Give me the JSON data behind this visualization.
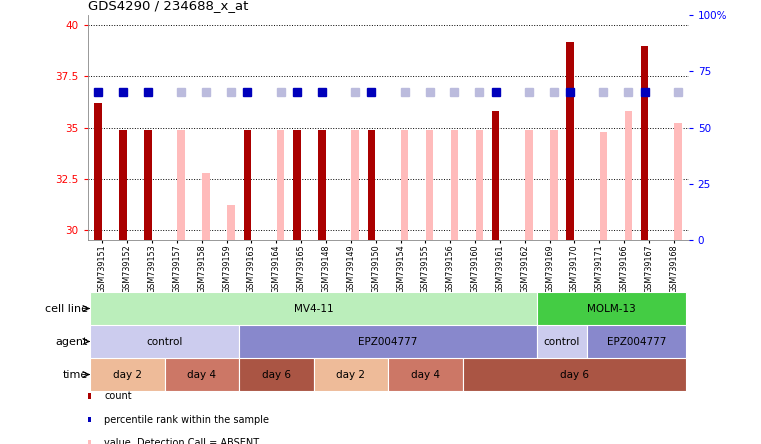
{
  "title": "GDS4290 / 234688_x_at",
  "samples": [
    "GSM739151",
    "GSM739152",
    "GSM739153",
    "GSM739157",
    "GSM739158",
    "GSM739159",
    "GSM739163",
    "GSM739164",
    "GSM739165",
    "GSM739148",
    "GSM739149",
    "GSM739150",
    "GSM739154",
    "GSM739155",
    "GSM739156",
    "GSM739160",
    "GSM739161",
    "GSM739162",
    "GSM739169",
    "GSM739170",
    "GSM739171",
    "GSM739166",
    "GSM739167",
    "GSM739168"
  ],
  "count_values": [
    36.2,
    34.9,
    34.9,
    null,
    null,
    null,
    34.9,
    null,
    34.9,
    34.9,
    null,
    34.9,
    null,
    null,
    null,
    null,
    35.8,
    null,
    null,
    39.2,
    null,
    null,
    39.0,
    null
  ],
  "value_values": [
    null,
    null,
    null,
    34.9,
    32.8,
    31.2,
    null,
    34.9,
    null,
    null,
    34.9,
    null,
    34.9,
    34.9,
    34.9,
    34.9,
    null,
    34.9,
    34.9,
    null,
    34.8,
    35.8,
    null,
    35.2
  ],
  "rank_present": [
    66,
    66,
    66,
    null,
    null,
    null,
    66,
    null,
    66,
    66,
    null,
    66,
    null,
    null,
    null,
    null,
    66,
    null,
    null,
    66,
    null,
    null,
    66,
    null
  ],
  "rank_absent": [
    null,
    null,
    null,
    66,
    66,
    66,
    null,
    66,
    null,
    null,
    66,
    null,
    66,
    66,
    66,
    66,
    null,
    66,
    66,
    null,
    66,
    66,
    null,
    66
  ],
  "ylim_left": [
    29.5,
    40.5
  ],
  "ylim_right": [
    0,
    100
  ],
  "yticks_left": [
    30,
    32.5,
    35,
    37.5,
    40
  ],
  "yticks_right": [
    0,
    25,
    50,
    75,
    100
  ],
  "yticklabels_right": [
    "0",
    "25",
    "50",
    "75",
    "100%"
  ],
  "count_color": "#aa0000",
  "value_color": "#ffbbbb",
  "rank_color": "#0000bb",
  "rank_absent_color": "#bbbbdd",
  "bg_color": "#ffffff",
  "cell_lines": [
    {
      "label": "MV4-11",
      "start": 0,
      "end": 18,
      "color": "#bbeebb"
    },
    {
      "label": "MOLM-13",
      "start": 18,
      "end": 24,
      "color": "#44cc44"
    }
  ],
  "agent_segments": [
    {
      "label": "control",
      "start": 0,
      "end": 6,
      "color": "#ccccee"
    },
    {
      "label": "EPZ004777",
      "start": 6,
      "end": 18,
      "color": "#8888cc"
    },
    {
      "label": "control",
      "start": 18,
      "end": 20,
      "color": "#ccccee"
    },
    {
      "label": "EPZ004777",
      "start": 20,
      "end": 24,
      "color": "#8888cc"
    }
  ],
  "time_segments": [
    {
      "label": "day 2",
      "start": 0,
      "end": 3,
      "color": "#eebb99"
    },
    {
      "label": "day 4",
      "start": 3,
      "end": 6,
      "color": "#cc7766"
    },
    {
      "label": "day 6",
      "start": 6,
      "end": 9,
      "color": "#aa5544"
    },
    {
      "label": "day 2",
      "start": 9,
      "end": 12,
      "color": "#eebb99"
    },
    {
      "label": "day 4",
      "start": 12,
      "end": 15,
      "color": "#cc7766"
    },
    {
      "label": "day 6",
      "start": 15,
      "end": 24,
      "color": "#aa5544"
    }
  ],
  "n_samples": 24,
  "row_labels": [
    "cell line",
    "agent",
    "time"
  ]
}
